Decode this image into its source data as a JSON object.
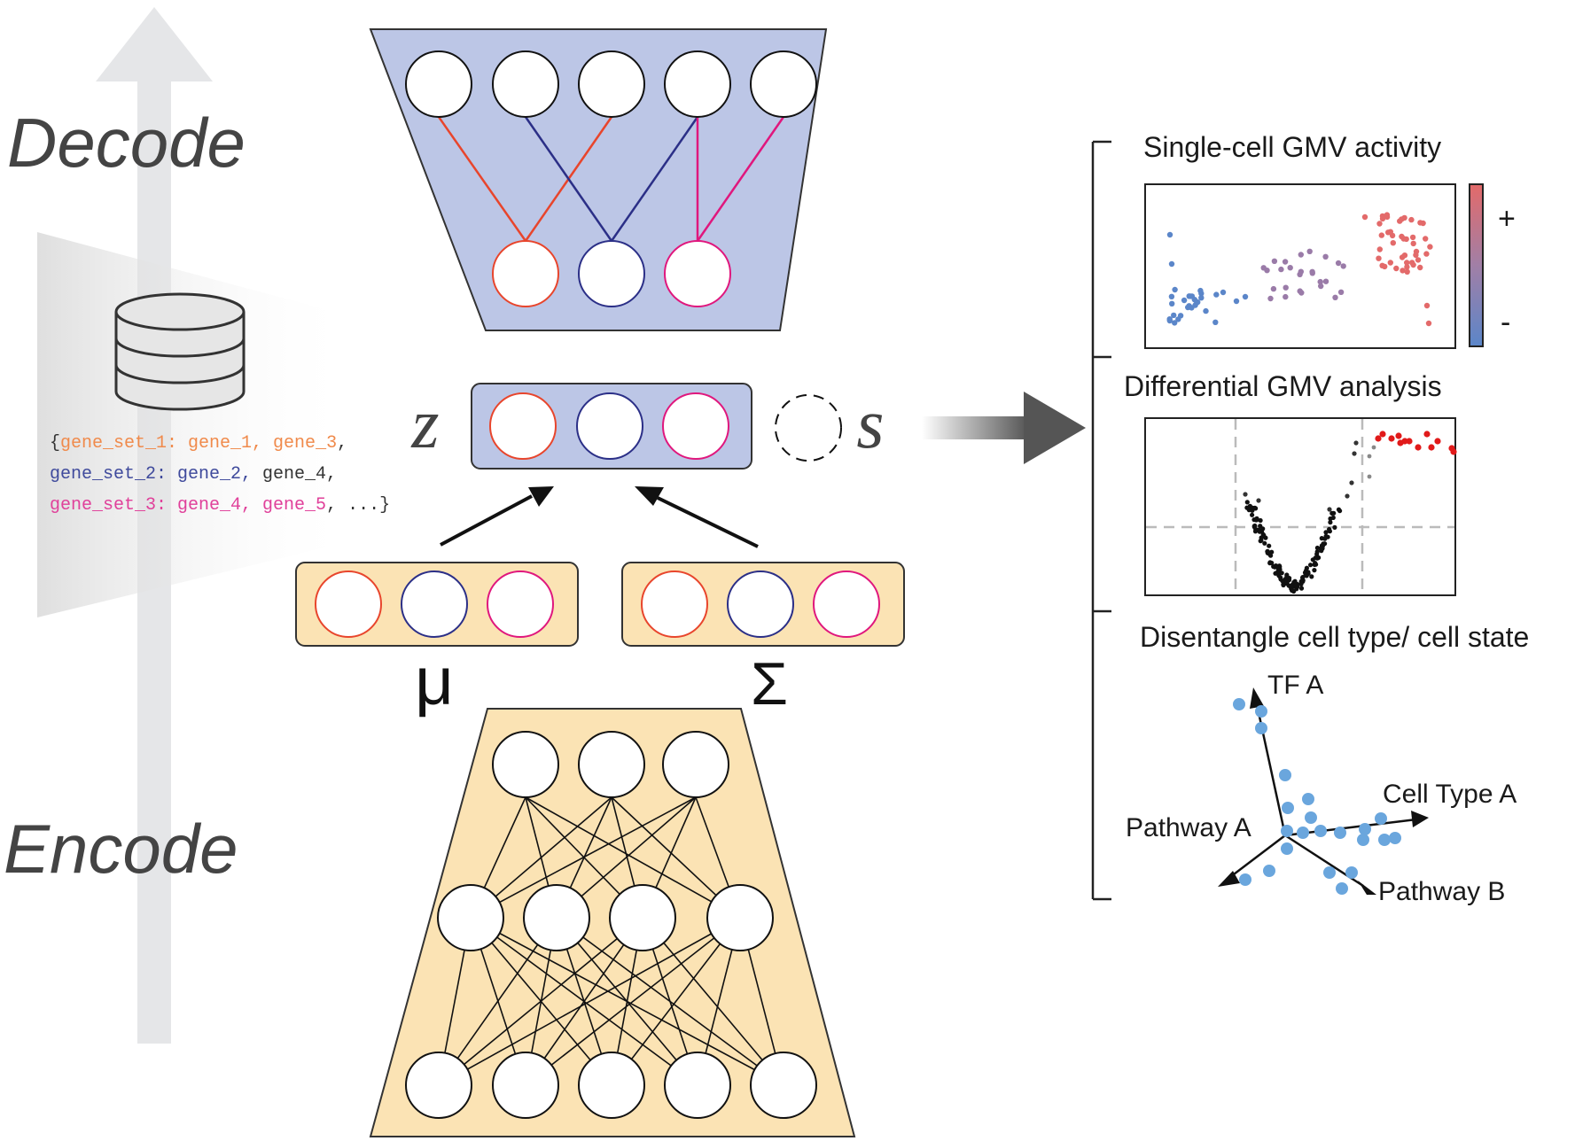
{
  "left": {
    "decode_label": "Decode",
    "encode_label": "Encode",
    "gene_sets": {
      "line1_open": "{",
      "line1_key": "gene_set_1: gene_1, gene_3",
      "line1_end": ",",
      "line2_key": "gene_set_2: gene_2,",
      "line2_rest": " gene_4,",
      "line3_key": "gene_set_3: gene_4, gene_5",
      "line3_rest": ", ...}"
    }
  },
  "center": {
    "latent_z": "z",
    "latent_s": "s",
    "mu": "μ",
    "sigma": "Σ"
  },
  "right": {
    "panel1_title": "Single-cell GMV activity",
    "colorbar_plus": "+",
    "colorbar_minus": "-",
    "panel2_title": "Differential GMV analysis",
    "panel3_title": "Disentangle cell type/ cell state",
    "axes": {
      "tf": "TF A",
      "cell_type": "Cell Type A",
      "pathway_a": "Pathway A",
      "pathway_b": "Pathway B"
    }
  },
  "colors": {
    "red": "#e8452c",
    "blue": "#2b2f87",
    "magenta": "#e0177d",
    "decoder_fill": "#bcc6e6",
    "encoder_fill": "#fbe3b4",
    "orange_text": "#f08a4b",
    "blue_text": "#3f4a9c",
    "magenta_text": "#e0409a",
    "scatter_blue": "#5b86c9",
    "scatter_purple": "#9a7ba8",
    "scatter_red": "#e36a6a",
    "dot_lightblue": "#6aa6dd"
  }
}
